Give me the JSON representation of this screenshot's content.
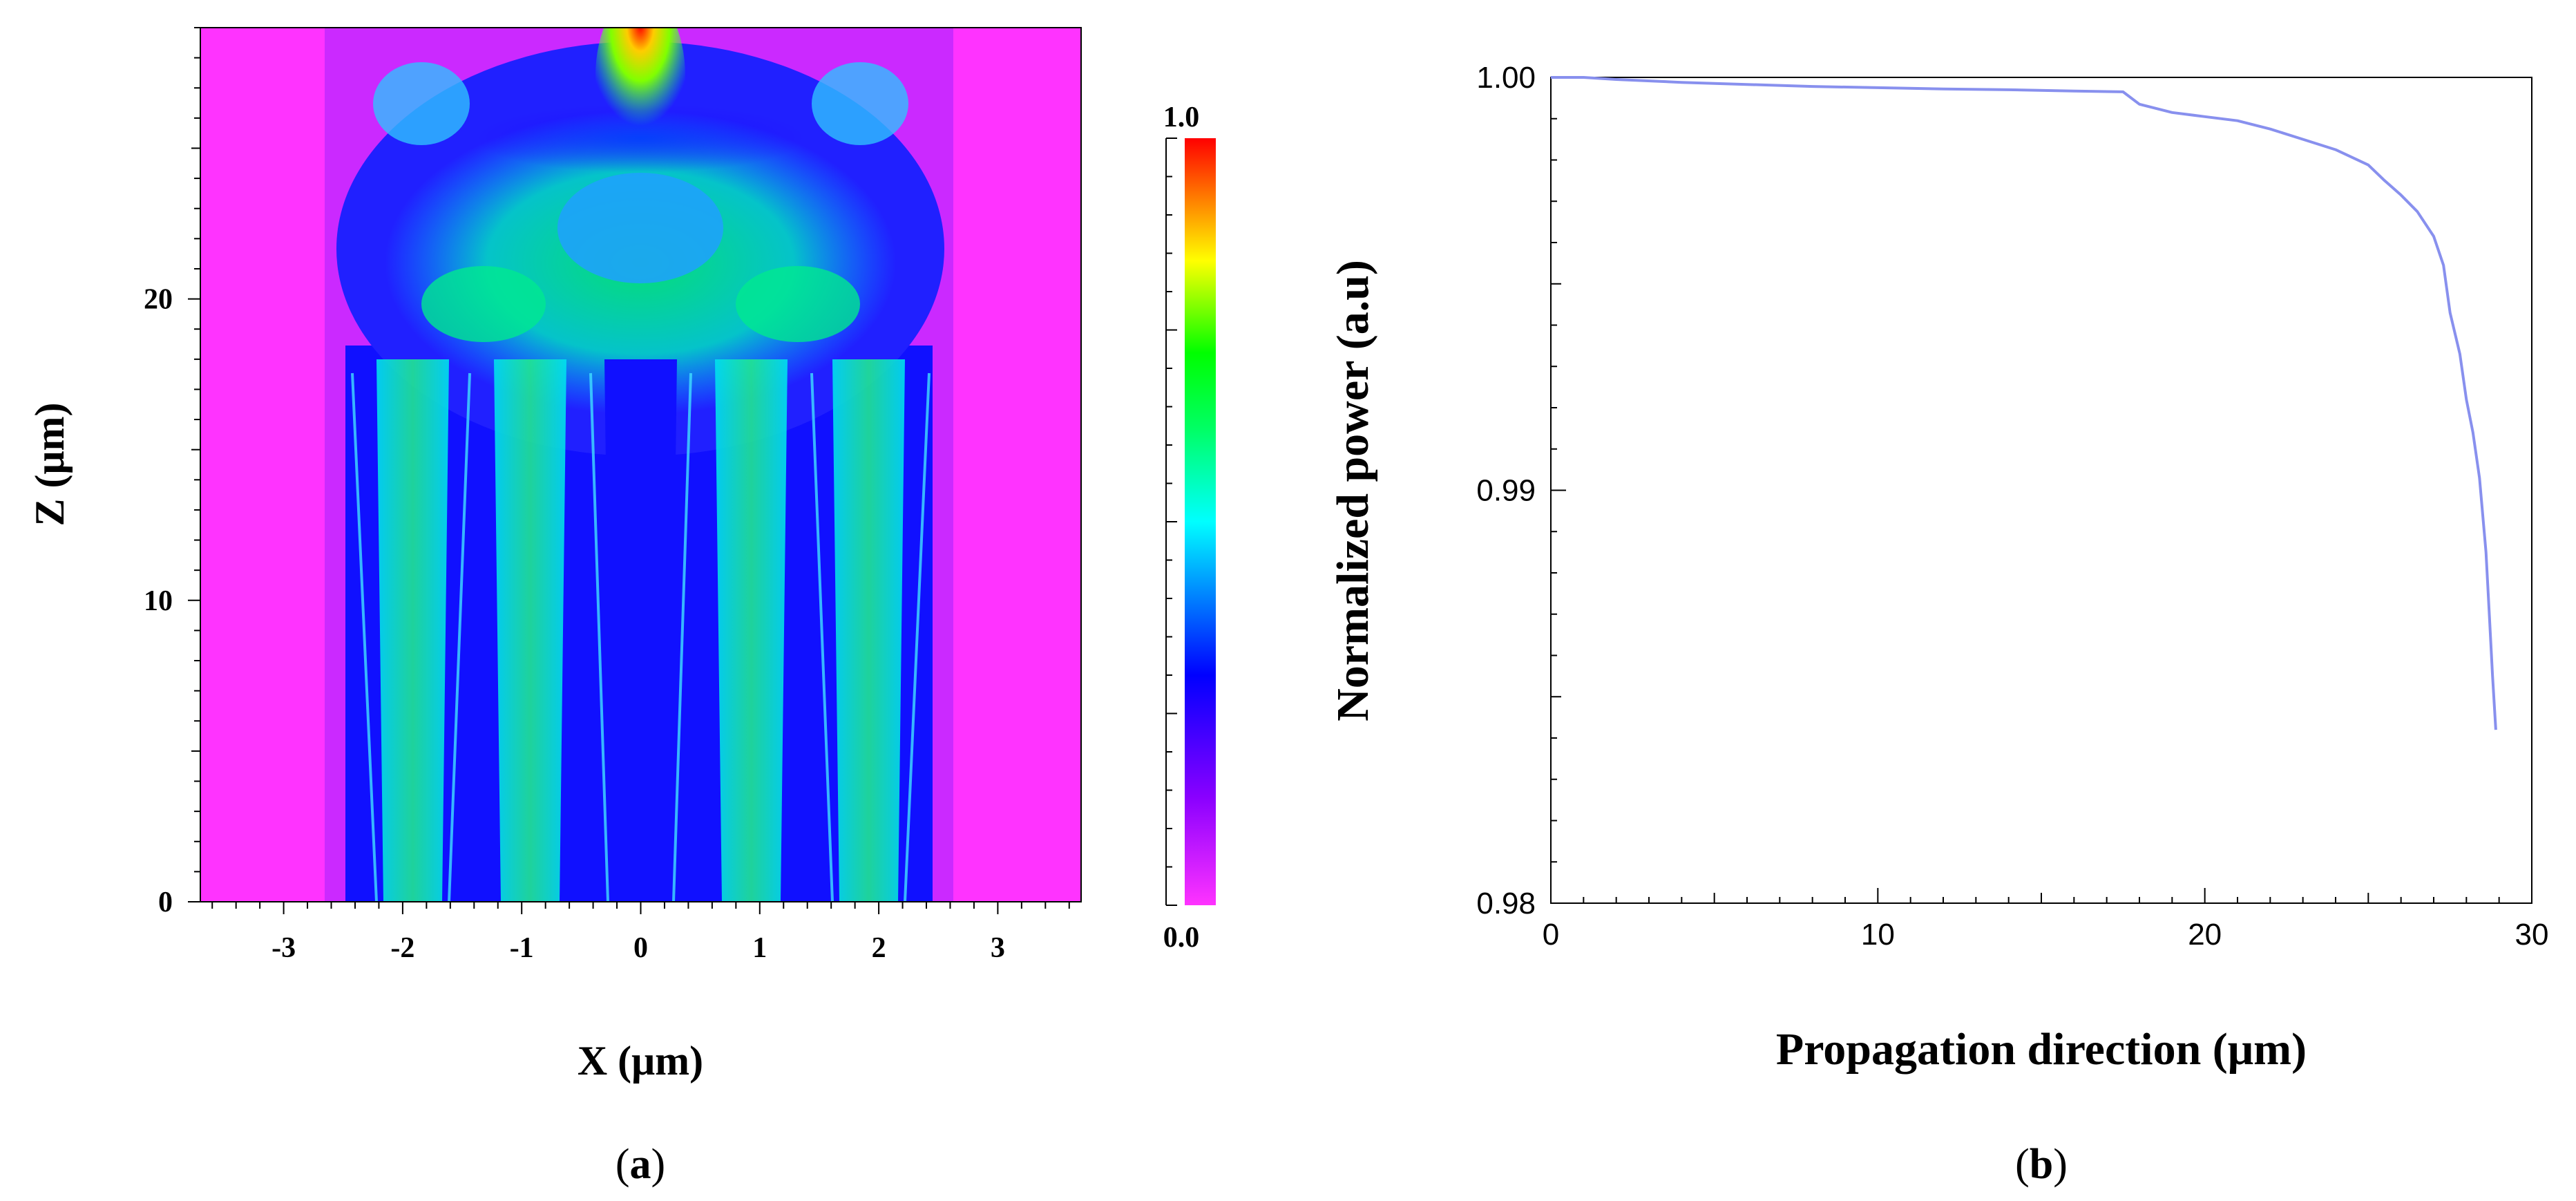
{
  "panels": [
    {
      "id": "a",
      "label_open": "(",
      "label_letter": "a",
      "label_close": ")"
    },
    {
      "id": "b",
      "label_open": "(",
      "label_letter": "b",
      "label_close": ")"
    }
  ],
  "chart_data": [
    {
      "type": "heatmap",
      "panel": "a",
      "title": "",
      "xlabel": "X (μm)",
      "ylabel": "Z (μm)",
      "xlim": [
        -3.7,
        3.7
      ],
      "ylim": [
        0,
        29
      ],
      "xticks": [
        -3,
        -2,
        -1,
        0,
        1,
        2,
        3
      ],
      "xtick_labels": [
        "-3",
        "-2",
        "-1",
        "0",
        "1",
        "2",
        "3"
      ],
      "yticks": [
        0,
        10,
        20
      ],
      "ytick_labels": [
        "0",
        "10",
        "20"
      ],
      "colorbar": {
        "min": 0.0,
        "max": 1.0,
        "min_label": "0.0",
        "max_label": "1.0",
        "colors": [
          "#ff33ff",
          "#8a00ff",
          "#0000ff",
          "#00ffff",
          "#00ff00",
          "#ffff00",
          "#ff0000"
        ]
      },
      "field_features": {
        "background_color": "#ff33ff",
        "waveguide_core_centers_um": [
          -2.0,
          -1.0,
          0.0,
          1.0,
          2.0
        ],
        "waveguide_region_z_um": [
          0,
          17
        ],
        "coupling_region_z_um": [
          17,
          29
        ],
        "output_focus_x_um": 0.0
      }
    },
    {
      "type": "line",
      "panel": "b",
      "title": "",
      "xlabel": "Propagation direction (μm)",
      "ylabel": "Normalized power (a.u)",
      "xlim": [
        0,
        30
      ],
      "ylim": [
        0.98,
        1.0
      ],
      "xticks": [
        0,
        10,
        20,
        30
      ],
      "xtick_labels": [
        "0",
        "10",
        "20",
        "30"
      ],
      "yticks": [
        0.98,
        0.99,
        1.0
      ],
      "ytick_labels": [
        "0.98",
        "0.99",
        "1.00"
      ],
      "grid": false,
      "series": [
        {
          "color": "#8890ee",
          "x": [
            0,
            1,
            2,
            4,
            6,
            8,
            10,
            12,
            14,
            16,
            17.5,
            18,
            18.5,
            19,
            20,
            21,
            22,
            23,
            24,
            25,
            25.5,
            26,
            26.5,
            27,
            27.3,
            27.5,
            27.8,
            28,
            28.2,
            28.4,
            28.6,
            28.7,
            28.8,
            28.9
          ],
          "y": [
            1.0,
            1.0,
            0.99995,
            0.99988,
            0.99983,
            0.99978,
            0.99975,
            0.99972,
            0.9997,
            0.99967,
            0.99965,
            0.99935,
            0.99925,
            0.99915,
            0.99905,
            0.99895,
            0.99875,
            0.9985,
            0.99825,
            0.99788,
            0.9975,
            0.99715,
            0.99675,
            0.99615,
            0.99545,
            0.9943,
            0.9933,
            0.9922,
            0.9914,
            0.9903,
            0.9885,
            0.987,
            0.9855,
            0.9842
          ]
        }
      ]
    }
  ]
}
